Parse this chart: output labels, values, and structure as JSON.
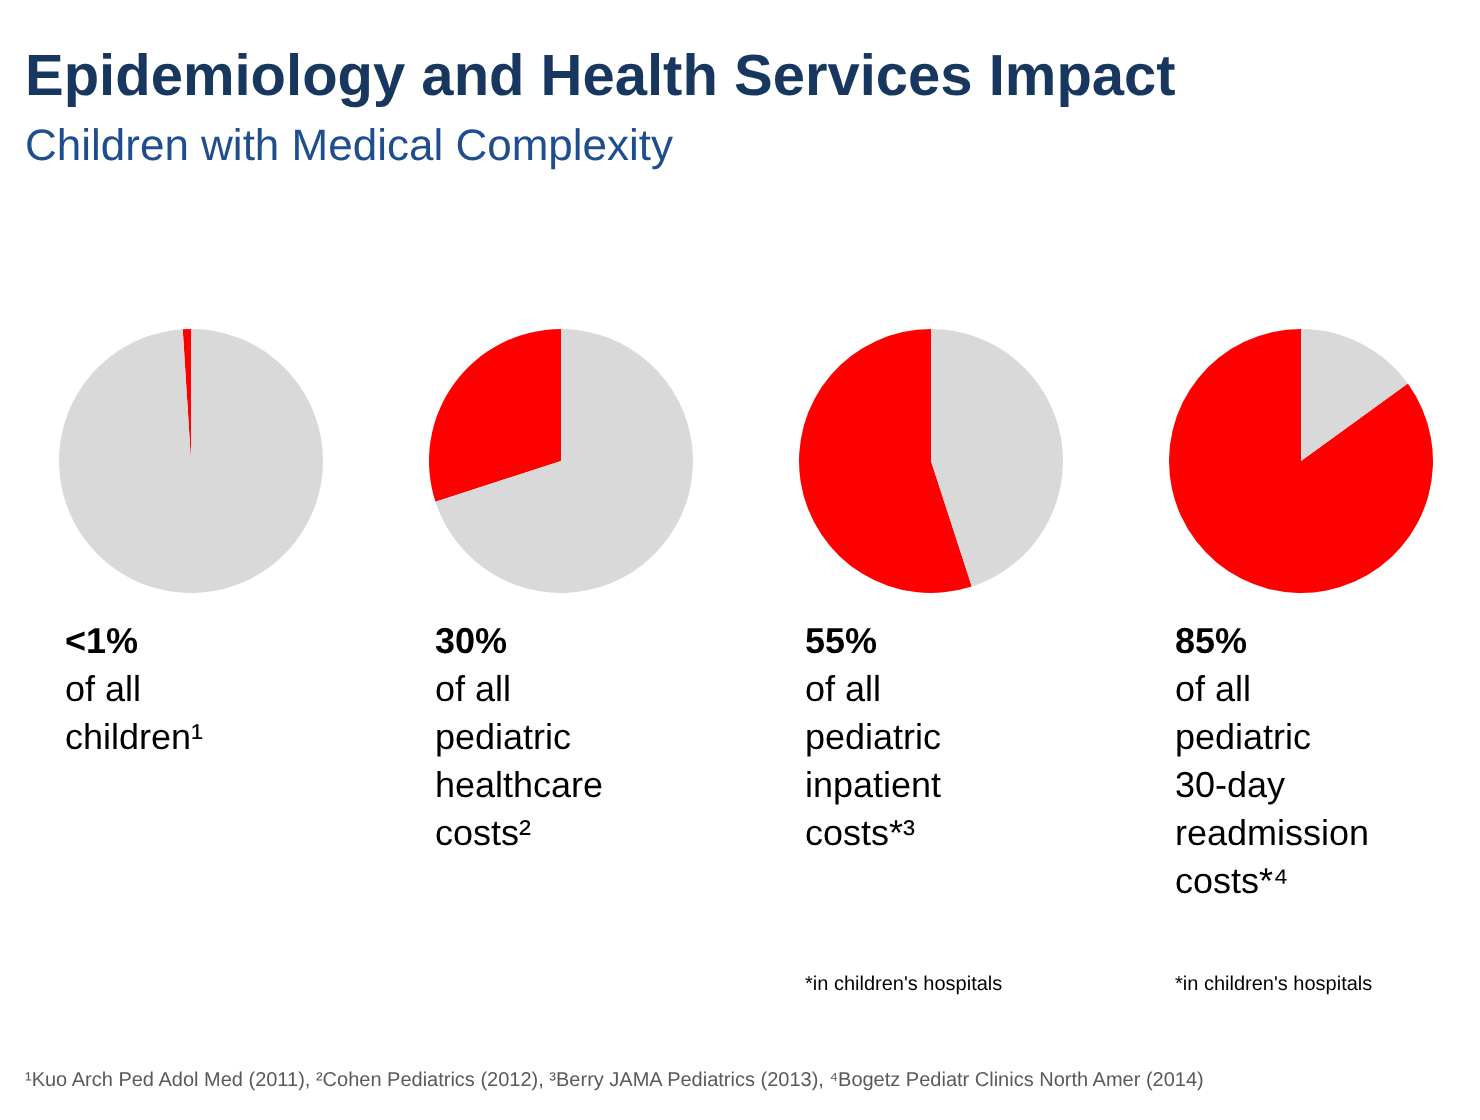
{
  "chart_data": [
    {
      "type": "other",
      "title": "Epidemiology and Health Services Impact",
      "subtitle": "Children with Medical Complexity",
      "annotations": [
        "¹Kuo Arch Ped Adol Med (2011), ²Cohen Pediatrics (2012), ³Berry JAMA Pediatrics (2013), ⁴Bogetz Pediatr Clinics North Amer (2014)"
      ]
    },
    {
      "type": "pie",
      "categories": [
        null,
        null
      ],
      "values": [
        1,
        99
      ],
      "colors": [
        "#ff0000",
        "#d9d9d9"
      ],
      "annotations": [
        "<1%\nof all\nchildren¹"
      ]
    },
    {
      "type": "pie",
      "categories": [
        null,
        null
      ],
      "values": [
        30,
        70
      ],
      "colors": [
        "#ff0000",
        "#d9d9d9"
      ],
      "annotations": [
        "30%\nof all\npediatric\nhealthcare\ncosts²"
      ]
    },
    {
      "type": "pie",
      "categories": [
        null,
        null
      ],
      "values": [
        55,
        45
      ],
      "colors": [
        "#ff0000",
        "#d9d9d9"
      ],
      "annotations": [
        "55%\nof all\npediatric\ninpatient\ncosts*³",
        "*in children's hospitals"
      ]
    },
    {
      "type": "pie",
      "categories": [
        null,
        null
      ],
      "values": [
        85,
        15
      ],
      "colors": [
        "#ff0000",
        "#d9d9d9"
      ],
      "annotations": [
        "85%\nof all\npediatric\n30-day\nreadmission\ncosts*⁴",
        "*in children's hospitals"
      ]
    }
  ]
}
